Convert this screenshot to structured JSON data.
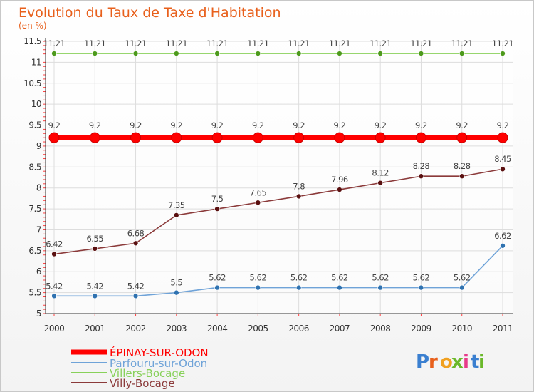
{
  "chart_data": {
    "type": "line",
    "title": "Evolution du Taux de Taxe d'Habitation",
    "ylabel": "(en %)",
    "x": [
      "2000",
      "2001",
      "2002",
      "2003",
      "2004",
      "2005",
      "2006",
      "2007",
      "2008",
      "2009",
      "2010",
      "2011"
    ],
    "ylim": [
      5,
      11.5
    ],
    "yticks": [
      "5",
      "5.5",
      "6",
      "6.5",
      "7",
      "7.5",
      "8",
      "8.5",
      "9",
      "9.5",
      "10",
      "10.5",
      "11",
      "11.5"
    ],
    "grid": true,
    "legend_position": "bottom-left",
    "series": [
      {
        "name": "ÉPINAY-SUR-ODON",
        "color": "#ff0000",
        "values": [
          9.2,
          9.2,
          9.2,
          9.2,
          9.2,
          9.2,
          9.2,
          9.2,
          9.2,
          9.2,
          9.2,
          9.2
        ],
        "labels": [
          "9.2",
          "9.2",
          "9.2",
          "9.2",
          "9.2",
          "9.2",
          "9.2",
          "9.2",
          "9.2",
          "9.2",
          "9.2",
          "9.2"
        ]
      },
      {
        "name": "Parfouru-sur-Odon",
        "color": "#6fa3d8",
        "values": [
          5.42,
          5.42,
          5.42,
          5.5,
          5.62,
          5.62,
          5.62,
          5.62,
          5.62,
          5.62,
          5.62,
          6.62
        ],
        "labels": [
          "5.42",
          "5.42",
          "5.42",
          "5.5",
          "5.62",
          "5.62",
          "5.62",
          "5.62",
          "5.62",
          "5.62",
          "5.62",
          "6.62"
        ]
      },
      {
        "name": "Villers-Bocage",
        "color": "#88d15a",
        "values": [
          11.21,
          11.21,
          11.21,
          11.21,
          11.21,
          11.21,
          11.21,
          11.21,
          11.21,
          11.21,
          11.21,
          11.21
        ],
        "labels": [
          "11.21",
          "11.21",
          "11.21",
          "11.21",
          "11.21",
          "11.21",
          "11.21",
          "11.21",
          "11.21",
          "11.21",
          "11.21",
          "11.21"
        ]
      },
      {
        "name": "Villy-Bocage",
        "color": "#8b3a3a",
        "values": [
          6.42,
          6.55,
          6.68,
          7.35,
          7.5,
          7.65,
          7.8,
          7.96,
          8.12,
          8.28,
          8.28,
          8.45
        ],
        "labels": [
          "6.42",
          "6.55",
          "6.68",
          "7.35",
          "7.5",
          "7.65",
          "7.8",
          "7.96",
          "8.12",
          "8.28",
          "8.28",
          "8.45"
        ]
      }
    ]
  },
  "logo": {
    "text": "Proxiti"
  }
}
